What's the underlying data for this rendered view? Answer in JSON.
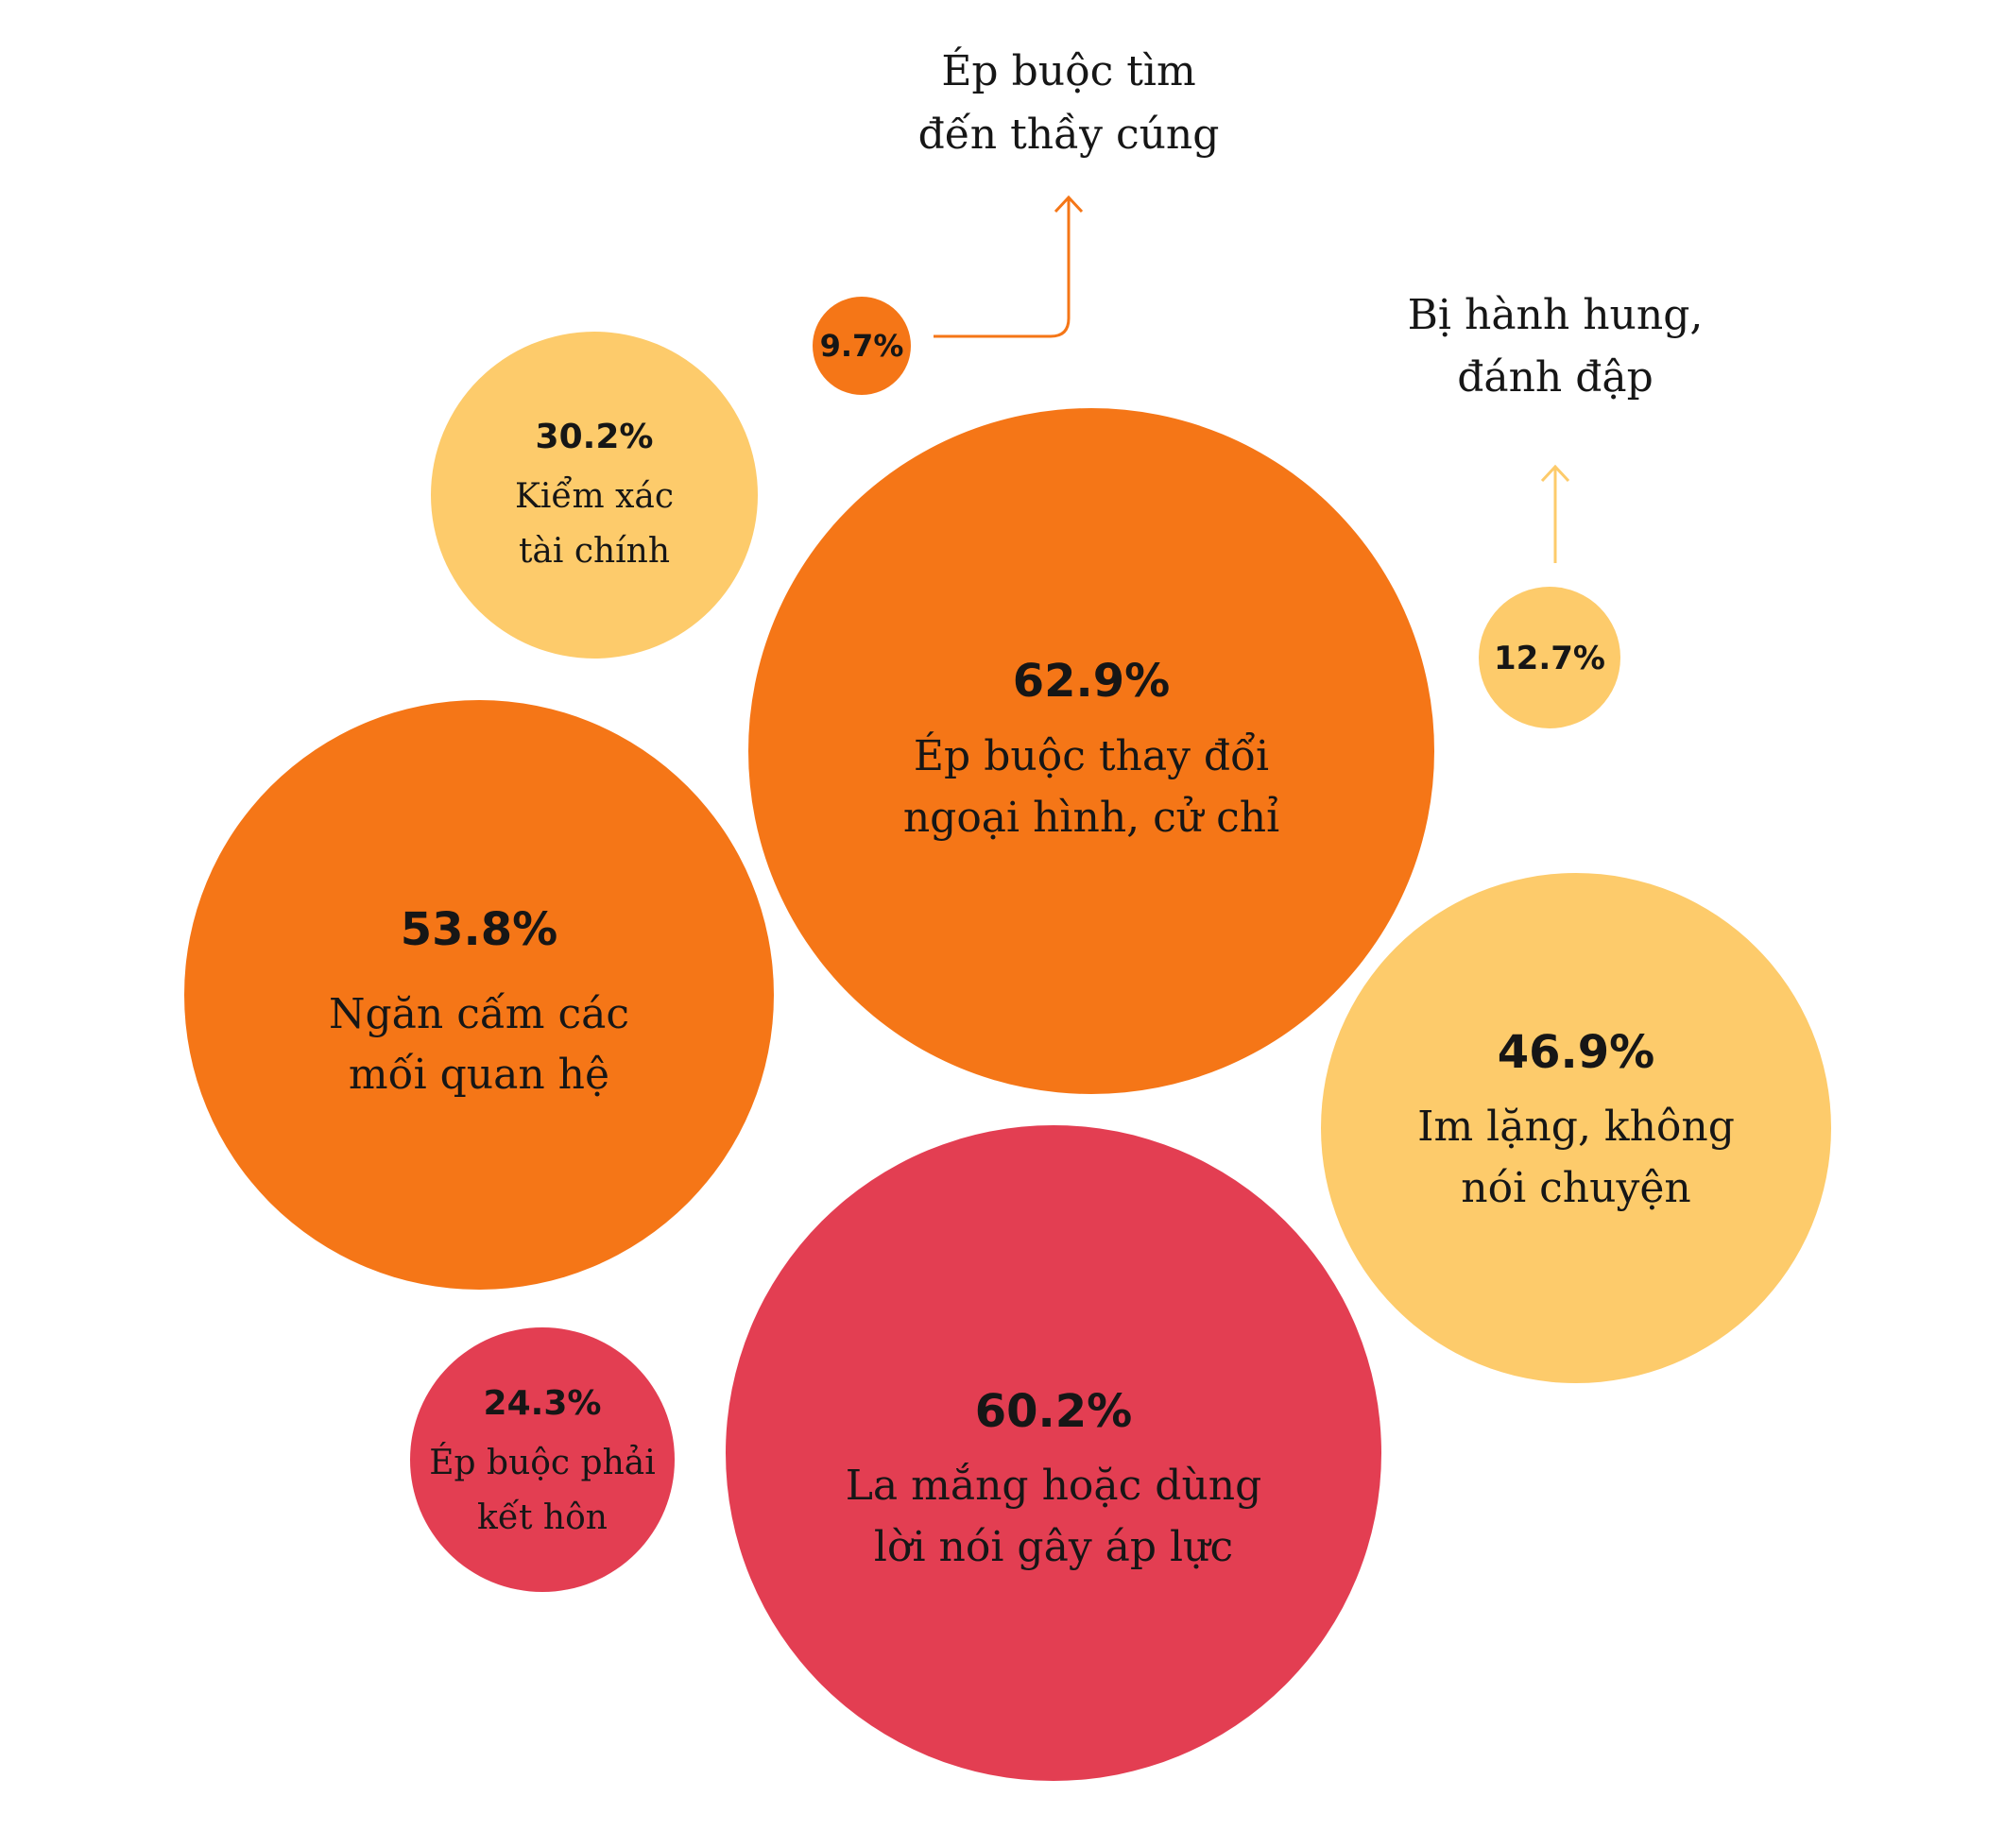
{
  "chart_data": {
    "type": "bubble",
    "colors": {
      "dark_orange": "#f57617",
      "light_yellow": "#fdcb6b",
      "red": "#e33e52"
    },
    "items": [
      {
        "id": "thay-doi-ngoai-hinh",
        "value": 62.9,
        "value_label": "62.9%",
        "label_lines": [
          "Ép buộc thay đổi",
          "ngoại hình, cử chỉ"
        ],
        "color": "#f57617",
        "label_position": "inside"
      },
      {
        "id": "la-mang",
        "value": 60.2,
        "value_label": "60.2%",
        "label_lines": [
          "La mắng hoặc dùng",
          "lời nói gây áp lực"
        ],
        "color": "#e33e52",
        "label_position": "inside"
      },
      {
        "id": "ngan-cam",
        "value": 53.8,
        "value_label": "53.8%",
        "label_lines": [
          "Ngăn cấm các",
          "mối quan hệ"
        ],
        "color": "#f57617",
        "label_position": "inside"
      },
      {
        "id": "im-lang",
        "value": 46.9,
        "value_label": "46.9%",
        "label_lines": [
          "Im lặng, không",
          "nói chuyện"
        ],
        "color": "#fdcb6b",
        "label_position": "inside"
      },
      {
        "id": "kiem-xac",
        "value": 30.2,
        "value_label": "30.2%",
        "label_lines": [
          "Kiểm xác",
          "tài chính"
        ],
        "color": "#fdcb6b",
        "label_position": "inside"
      },
      {
        "id": "ket-hon",
        "value": 24.3,
        "value_label": "24.3%",
        "label_lines": [
          "Ép buộc phải",
          "kết hôn"
        ],
        "color": "#e33e52",
        "label_position": "inside"
      },
      {
        "id": "hanh-hung",
        "value": 12.7,
        "value_label": "12.7%",
        "label_lines": [
          "Bị hành hung,",
          "đánh đập"
        ],
        "color": "#fdcb6b",
        "label_position": "outside-above"
      },
      {
        "id": "thay-cung",
        "value": 9.7,
        "value_label": "9.7%",
        "label_lines": [
          "Ép buộc tìm",
          "đến thầy cúng"
        ],
        "color": "#f57617",
        "label_position": "outside-right-up"
      }
    ]
  }
}
